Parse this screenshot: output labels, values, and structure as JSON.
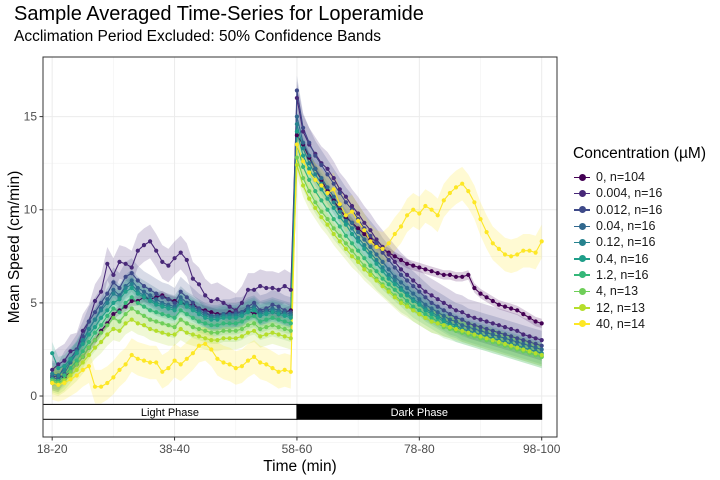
{
  "chart_data": {
    "type": "line",
    "title": "Sample Averaged Time-Series for Loperamide",
    "subtitle": "Acclimation Period Excluded: 50% Confidence Bands",
    "xlabel": "Time (min)",
    "ylabel": "Mean Speed (cm/min)",
    "x_tick_labels": [
      "18-20",
      "38-40",
      "58-60",
      "78-80",
      "98-100"
    ],
    "x_tick_values": [
      20,
      40,
      60,
      80,
      100
    ],
    "xlim": [
      18.5,
      102.5
    ],
    "y_ticks": [
      0,
      5,
      10,
      15
    ],
    "ylim": [
      -2.2,
      18.2
    ],
    "grid": true,
    "legend_title": "Concentration (µM)",
    "legend_position": "right",
    "x": [
      20,
      21,
      22,
      23,
      24,
      25,
      26,
      27,
      28,
      29,
      30,
      31,
      32,
      33,
      34,
      35,
      36,
      37,
      38,
      39,
      40,
      41,
      42,
      43,
      44,
      45,
      46,
      47,
      48,
      49,
      50,
      51,
      52,
      53,
      54,
      55,
      56,
      57,
      58,
      59,
      60,
      61,
      62,
      63,
      64,
      65,
      66,
      67,
      68,
      69,
      70,
      71,
      72,
      73,
      74,
      75,
      76,
      77,
      78,
      79,
      80,
      81,
      82,
      83,
      84,
      85,
      86,
      87,
      88,
      89,
      90,
      91,
      92,
      93,
      94,
      95,
      96,
      97,
      98,
      99,
      100
    ],
    "series": [
      {
        "name": "0, n=104",
        "color": "#440154",
        "values": [
          1.0,
          1.1,
          1.0,
          1.3,
          1.7,
          2.1,
          2.6,
          3.0,
          3.5,
          3.9,
          4.4,
          4.6,
          4.8,
          5.1,
          5.1,
          5.3,
          5.2,
          5.3,
          5.4,
          5.2,
          5.1,
          5.0,
          4.9,
          4.9,
          4.7,
          4.6,
          4.5,
          4.4,
          4.4,
          4.5,
          4.5,
          4.5,
          4.6,
          4.4,
          4.5,
          4.6,
          4.5,
          4.4,
          4.5,
          4.6,
          14.0,
          13.5,
          12.8,
          12.2,
          11.6,
          11.0,
          10.5,
          10.0,
          9.6,
          9.3,
          9.0,
          8.7,
          8.4,
          8.1,
          7.9,
          7.7,
          7.5,
          7.3,
          7.1,
          7.0,
          6.9,
          6.8,
          6.7,
          6.6,
          6.5,
          6.5,
          6.4,
          6.4,
          6.5,
          5.8,
          5.5,
          5.3,
          5.1,
          4.9,
          4.8,
          4.7,
          4.6,
          4.4,
          4.2,
          4.0,
          3.9
        ],
        "band": 0.25
      },
      {
        "name": "0.004, n=16",
        "color": "#482878",
        "values": [
          1.4,
          1.7,
          1.9,
          2.4,
          2.5,
          3.5,
          4.0,
          5.1,
          5.6,
          7.1,
          6.5,
          7.2,
          7.1,
          6.9,
          7.8,
          8.1,
          8.3,
          7.8,
          7.2,
          7.0,
          7.4,
          7.7,
          7.3,
          6.3,
          6.0,
          5.4,
          5.1,
          5.2,
          5.0,
          4.8,
          4.6,
          5.0,
          5.7,
          5.7,
          5.9,
          5.8,
          5.8,
          5.7,
          5.9,
          5.7,
          16.0,
          14.2,
          13.5,
          13.0,
          12.5,
          12.2,
          11.7,
          11.1,
          10.7,
          10.2,
          9.8,
          9.3,
          8.9,
          8.4,
          8.0,
          7.6,
          7.2,
          6.8,
          6.5,
          6.2,
          5.9,
          5.6,
          5.4,
          5.2,
          5.0,
          4.8,
          4.6,
          4.5,
          4.3,
          4.2,
          4.1,
          4.0,
          3.9,
          3.8,
          3.7,
          3.6,
          3.5,
          3.3,
          3.2,
          3.1,
          3.0
        ],
        "band": 0.9
      },
      {
        "name": "0.012, n=16",
        "color": "#3e4a89",
        "values": [
          1.1,
          1.0,
          1.6,
          2.0,
          2.5,
          3.2,
          4.0,
          4.5,
          5.0,
          5.5,
          6.1,
          5.8,
          6.4,
          6.6,
          6.2,
          5.9,
          5.7,
          5.5,
          5.3,
          5.2,
          5.0,
          5.6,
          5.3,
          5.0,
          4.7,
          4.5,
          4.3,
          4.3,
          4.4,
          4.4,
          4.5,
          4.5,
          4.8,
          5.0,
          4.6,
          4.7,
          4.9,
          4.8,
          4.6,
          4.5,
          16.4,
          14.4,
          13.6,
          12.9,
          12.4,
          11.9,
          11.4,
          10.9,
          10.4,
          10.0,
          9.5,
          9.0,
          8.6,
          8.2,
          7.7,
          7.3,
          6.9,
          6.5,
          6.2,
          5.9,
          5.6,
          5.3,
          5.0,
          4.8,
          4.6,
          4.4,
          4.2,
          4.1,
          3.9,
          3.8,
          3.7,
          3.6,
          3.5,
          3.4,
          3.3,
          3.2,
          3.1,
          3.0,
          2.9,
          2.8,
          2.7
        ],
        "band": 0.8
      },
      {
        "name": "0.04, n=16",
        "color": "#31688e",
        "values": [
          1.0,
          0.9,
          1.2,
          1.8,
          2.3,
          2.9,
          3.6,
          4.1,
          4.7,
          5.2,
          5.7,
          5.4,
          5.9,
          6.2,
          5.8,
          5.6,
          5.4,
          5.2,
          5.0,
          4.9,
          4.8,
          5.3,
          5.0,
          4.8,
          4.6,
          4.4,
          4.3,
          4.3,
          4.4,
          4.4,
          4.4,
          4.5,
          4.7,
          4.8,
          4.5,
          4.6,
          4.7,
          4.6,
          4.5,
          4.4,
          15.0,
          13.6,
          12.9,
          12.2,
          11.7,
          11.2,
          10.7,
          10.2,
          9.7,
          9.3,
          8.8,
          8.4,
          8.0,
          7.6,
          7.2,
          6.8,
          6.4,
          6.1,
          5.8,
          5.5,
          5.2,
          4.9,
          4.7,
          4.5,
          4.3,
          4.1,
          4.0,
          3.8,
          3.7,
          3.6,
          3.5,
          3.4,
          3.3,
          3.2,
          3.1,
          3.0,
          2.9,
          2.8,
          2.7,
          2.6,
          2.5
        ],
        "band": 0.6
      },
      {
        "name": "0.12, n=16",
        "color": "#26828e",
        "values": [
          1.2,
          1.1,
          1.4,
          1.9,
          2.4,
          3.0,
          3.6,
          4.1,
          4.6,
          5.0,
          5.5,
          5.3,
          5.8,
          6.0,
          5.6,
          5.4,
          5.2,
          5.0,
          4.9,
          4.8,
          4.7,
          5.1,
          4.9,
          4.7,
          4.5,
          4.3,
          4.2,
          4.2,
          4.3,
          4.3,
          4.3,
          4.4,
          4.6,
          4.7,
          4.4,
          4.5,
          4.6,
          4.5,
          4.4,
          4.3,
          14.6,
          13.3,
          12.5,
          11.9,
          11.4,
          10.9,
          10.4,
          9.9,
          9.4,
          9.0,
          8.5,
          8.1,
          7.7,
          7.3,
          6.9,
          6.5,
          6.2,
          5.8,
          5.5,
          5.2,
          5.0,
          4.7,
          4.5,
          4.3,
          4.1,
          3.9,
          3.8,
          3.6,
          3.5,
          3.4,
          3.3,
          3.2,
          3.1,
          3.0,
          2.9,
          2.8,
          2.7,
          2.6,
          2.5,
          2.4,
          2.3
        ],
        "band": 0.6
      },
      {
        "name": "0.4, n=16",
        "color": "#1f9e89",
        "values": [
          2.3,
          1.5,
          1.6,
          2.0,
          2.3,
          2.8,
          3.3,
          3.7,
          4.2,
          4.6,
          5.0,
          5.2,
          5.6,
          5.8,
          5.5,
          5.3,
          5.1,
          4.9,
          4.8,
          4.7,
          4.6,
          5.0,
          4.8,
          4.6,
          4.4,
          4.2,
          4.1,
          4.1,
          4.2,
          4.2,
          4.2,
          4.3,
          4.5,
          4.6,
          4.3,
          4.4,
          4.5,
          4.4,
          4.3,
          4.2,
          14.2,
          12.9,
          12.2,
          11.6,
          11.1,
          10.6,
          10.1,
          9.6,
          9.2,
          8.7,
          8.3,
          7.9,
          7.5,
          7.1,
          6.7,
          6.3,
          6.0,
          5.7,
          5.4,
          5.1,
          4.9,
          4.6,
          4.4,
          4.2,
          4.0,
          3.8,
          3.7,
          3.5,
          3.4,
          3.3,
          3.2,
          3.1,
          3.0,
          2.9,
          2.8,
          2.7,
          2.6,
          2.5,
          2.4,
          2.3,
          2.2
        ],
        "band": 0.6
      },
      {
        "name": "1.2, n=16",
        "color": "#35b779",
        "values": [
          0.9,
          0.8,
          1.1,
          1.5,
          1.9,
          2.4,
          2.9,
          3.4,
          3.8,
          4.3,
          4.7,
          4.5,
          5.0,
          5.3,
          5.0,
          4.8,
          4.6,
          4.5,
          4.4,
          4.3,
          4.2,
          4.6,
          4.4,
          4.2,
          4.0,
          3.9,
          3.8,
          3.8,
          3.9,
          3.9,
          3.9,
          4.0,
          4.2,
          4.3,
          4.0,
          4.1,
          4.2,
          4.1,
          4.0,
          3.9,
          13.5,
          12.3,
          11.6,
          11.0,
          10.5,
          10.0,
          9.5,
          9.1,
          8.6,
          8.2,
          7.8,
          7.4,
          7.0,
          6.7,
          6.3,
          6.0,
          5.7,
          5.4,
          5.1,
          4.8,
          4.6,
          4.4,
          4.2,
          4.0,
          3.8,
          3.7,
          3.5,
          3.4,
          3.3,
          3.2,
          3.1,
          3.0,
          2.9,
          2.8,
          2.7,
          2.6,
          2.5,
          2.4,
          2.3,
          2.2,
          2.1
        ],
        "band": 0.6
      },
      {
        "name": "4, n=13",
        "color": "#6ece58",
        "values": [
          0.8,
          0.7,
          0.9,
          1.3,
          1.7,
          2.1,
          2.6,
          3.0,
          3.4,
          3.8,
          4.2,
          4.0,
          4.4,
          4.7,
          4.5,
          4.3,
          4.1,
          4.0,
          3.9,
          3.8,
          3.7,
          4.1,
          3.9,
          3.7,
          3.6,
          3.5,
          3.4,
          3.4,
          3.5,
          3.5,
          3.5,
          3.6,
          3.8,
          3.9,
          3.6,
          3.7,
          3.8,
          3.7,
          3.6,
          3.5,
          12.8,
          11.7,
          11.0,
          10.4,
          9.9,
          9.5,
          9.0,
          8.6,
          8.2,
          7.8,
          7.4,
          7.0,
          6.7,
          6.3,
          6.0,
          5.7,
          5.4,
          5.1,
          4.9,
          4.6,
          4.4,
          4.2,
          4.0,
          3.9,
          3.7,
          3.6,
          3.5,
          3.4,
          3.3,
          3.2,
          3.1,
          3.0,
          2.9,
          2.8,
          2.7,
          2.6,
          2.5,
          2.4,
          2.3,
          2.2,
          2.1
        ],
        "band": 0.6
      },
      {
        "name": "12, n=13",
        "color": "#b5de2b",
        "values": [
          0.7,
          0.6,
          0.8,
          1.1,
          1.4,
          1.8,
          2.2,
          2.6,
          2.9,
          3.3,
          3.6,
          3.5,
          3.9,
          4.1,
          3.9,
          3.8,
          3.6,
          3.5,
          3.4,
          3.3,
          3.3,
          3.6,
          3.4,
          3.3,
          3.2,
          3.1,
          3.0,
          3.0,
          3.1,
          3.1,
          3.1,
          3.2,
          3.4,
          3.5,
          3.2,
          3.3,
          3.4,
          3.3,
          3.2,
          3.1,
          12.4,
          11.3,
          10.6,
          10.1,
          9.6,
          9.2,
          8.7,
          8.3,
          7.9,
          7.5,
          7.2,
          6.8,
          6.5,
          6.2,
          5.9,
          5.6,
          5.3,
          5.0,
          4.8,
          4.6,
          4.4,
          4.2,
          4.0,
          3.9,
          3.8,
          3.7,
          3.6,
          3.5,
          3.4,
          3.3,
          3.2,
          3.1,
          3.0,
          2.9,
          2.8,
          2.7,
          2.6,
          2.5,
          2.4,
          2.3,
          2.2
        ],
        "band": 0.6
      },
      {
        "name": "40, n=14",
        "color": "#fde725",
        "values": [
          0.7,
          0.6,
          0.7,
          0.9,
          1.1,
          1.4,
          1.6,
          0.5,
          0.5,
          0.7,
          1.0,
          1.4,
          1.7,
          2.2,
          2.0,
          1.9,
          1.8,
          1.8,
          1.3,
          1.5,
          1.9,
          1.7,
          2.0,
          2.3,
          2.7,
          2.8,
          2.5,
          2.0,
          1.8,
          1.7,
          1.5,
          1.6,
          1.9,
          2.1,
          1.8,
          1.7,
          1.5,
          1.3,
          1.4,
          1.3,
          13.5,
          12.6,
          12.0,
          11.6,
          11.3,
          10.9,
          11.1,
          10.3,
          9.7,
          9.9,
          9.4,
          8.9,
          8.3,
          8.0,
          7.9,
          8.2,
          8.7,
          9.1,
          9.7,
          10.0,
          9.8,
          10.2,
          10.0,
          9.7,
          10.5,
          10.9,
          11.2,
          11.4,
          11.0,
          10.4,
          9.5,
          8.8,
          8.2,
          7.9,
          7.6,
          7.5,
          7.6,
          7.8,
          7.8,
          7.7,
          8.3
        ],
        "band": 0.9
      }
    ],
    "phase_bar": [
      {
        "label": "Light Phase",
        "x_start": 18.5,
        "x_end": 60,
        "fill": "#ffffff",
        "text_color": "#000000"
      },
      {
        "label": "Dark Phase",
        "x_start": 60,
        "x_end": 100,
        "fill": "#000000",
        "text_color": "#ffffff"
      }
    ],
    "phase_bar_y": [
      -1.25,
      -0.45
    ]
  }
}
